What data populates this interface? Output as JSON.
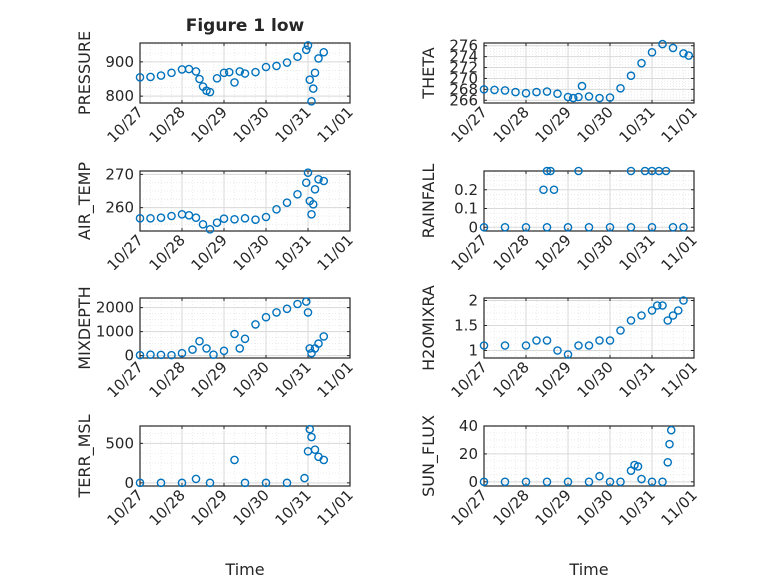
{
  "figure": {
    "title": "Figure 1 low",
    "xlabel": "Time",
    "date_ticks": [
      "10/27",
      "10/28",
      "10/29",
      "10/30",
      "10/31",
      "11/01"
    ]
  },
  "colors": {
    "marker": "#0072bd",
    "axis": "#262626",
    "grid": "#d9d9d9",
    "minor_grid": "#e6e6e6"
  },
  "chart_data": [
    {
      "type": "scatter",
      "title": "Figure 1 low",
      "ylabel": "PRESSURE",
      "xlim": [
        "2016-10-27",
        "2016-11-01"
      ],
      "ylim": [
        780,
        955
      ],
      "yticks": [
        800,
        900
      ],
      "x": [
        "2016-10-27T00:00",
        "2016-10-27T06:00",
        "2016-10-27T12:00",
        "2016-10-27T18:00",
        "2016-10-28T00:00",
        "2016-10-28T04:00",
        "2016-10-28T08:00",
        "2016-10-28T10:00",
        "2016-10-28T12:00",
        "2016-10-28T14:00",
        "2016-10-28T16:00",
        "2016-10-28T20:00",
        "2016-10-29T00:00",
        "2016-10-29T03:00",
        "2016-10-29T06:00",
        "2016-10-29T09:00",
        "2016-10-29T12:00",
        "2016-10-29T18:00",
        "2016-10-30T00:00",
        "2016-10-30T06:00",
        "2016-10-30T12:00",
        "2016-10-30T18:00",
        "2016-10-30T23:00",
        "2016-10-31T00:00",
        "2016-10-31T01:00",
        "2016-10-31T02:00",
        "2016-10-31T03:00",
        "2016-10-31T04:00",
        "2016-10-31T06:00",
        "2016-10-31T09:00"
      ],
      "y": [
        855,
        856,
        860,
        868,
        878,
        879,
        872,
        850,
        828,
        816,
        812,
        852,
        868,
        870,
        840,
        872,
        866,
        870,
        885,
        888,
        898,
        915,
        935,
        948,
        848,
        785,
        822,
        868,
        910,
        928
      ]
    },
    {
      "type": "scatter",
      "ylabel": "THETA",
      "xlim": [
        "2016-10-27",
        "2016-11-01"
      ],
      "ylim": [
        265.5,
        276.5
      ],
      "yticks": [
        266,
        268,
        270,
        272,
        274,
        276
      ],
      "x": [
        "2016-10-27T00:00",
        "2016-10-27T06:00",
        "2016-10-27T12:00",
        "2016-10-27T18:00",
        "2016-10-28T00:00",
        "2016-10-28T06:00",
        "2016-10-28T12:00",
        "2016-10-28T18:00",
        "2016-10-29T00:00",
        "2016-10-29T03:00",
        "2016-10-29T06:00",
        "2016-10-29T08:00",
        "2016-10-29T12:00",
        "2016-10-29T18:00",
        "2016-10-30T00:00",
        "2016-10-30T06:00",
        "2016-10-30T12:00",
        "2016-10-30T18:00",
        "2016-10-31T00:00",
        "2016-10-31T06:00",
        "2016-10-31T12:00",
        "2016-10-31T18:00",
        "2016-10-31T21:00"
      ],
      "y": [
        268.0,
        267.9,
        267.8,
        267.5,
        267.3,
        267.5,
        267.6,
        267.2,
        266.6,
        266.4,
        266.6,
        268.6,
        266.7,
        266.4,
        266.5,
        268.2,
        270.5,
        272.8,
        274.8,
        276.3,
        275.6,
        274.6,
        274.2
      ]
    },
    {
      "type": "scatter",
      "ylabel": "AIR_TEMP",
      "xlim": [
        "2016-10-27",
        "2016-11-01"
      ],
      "ylim": [
        253,
        271
      ],
      "yticks": [
        260,
        270
      ],
      "x": [
        "2016-10-27T00:00",
        "2016-10-27T06:00",
        "2016-10-27T12:00",
        "2016-10-27T18:00",
        "2016-10-28T00:00",
        "2016-10-28T04:00",
        "2016-10-28T08:00",
        "2016-10-28T12:00",
        "2016-10-28T16:00",
        "2016-10-28T20:00",
        "2016-10-29T00:00",
        "2016-10-29T06:00",
        "2016-10-29T12:00",
        "2016-10-29T18:00",
        "2016-10-30T00:00",
        "2016-10-30T06:00",
        "2016-10-30T12:00",
        "2016-10-30T18:00",
        "2016-10-30T23:00",
        "2016-10-31T00:00",
        "2016-10-31T01:00",
        "2016-10-31T02:00",
        "2016-10-31T03:00",
        "2016-10-31T04:00",
        "2016-10-31T06:00",
        "2016-10-31T09:00"
      ],
      "y": [
        256.8,
        256.8,
        257.0,
        257.5,
        258.0,
        257.7,
        257.0,
        255.0,
        253.5,
        255.5,
        256.7,
        256.5,
        256.8,
        256.4,
        257.2,
        259.5,
        261.5,
        264.0,
        267.5,
        270.5,
        262.0,
        258.0,
        261.0,
        265.5,
        268.5,
        268.0
      ]
    },
    {
      "type": "scatter",
      "ylabel": "RAINFALL",
      "xlim": [
        "2016-10-27",
        "2016-11-01"
      ],
      "ylim": [
        -0.02,
        0.3
      ],
      "yticks": [
        0,
        0.1,
        0.2
      ],
      "x": [
        "2016-10-27T00:00",
        "2016-10-27T12:00",
        "2016-10-28T00:00",
        "2016-10-28T12:00",
        "2016-10-29T00:00",
        "2016-10-29T12:00",
        "2016-10-30T00:00",
        "2016-10-30T12:00",
        "2016-10-31T00:00",
        "2016-10-31T12:00",
        "2016-10-31T18:00",
        "2016-10-28T10:00",
        "2016-10-28T12:00",
        "2016-10-28T14:00",
        "2016-10-28T16:00",
        "2016-10-29T06:00",
        "2016-10-30T12:00",
        "2016-10-30T20:00",
        "2016-10-31T00:00",
        "2016-10-31T04:00",
        "2016-10-31T08:00"
      ],
      "y": [
        0,
        0,
        0,
        0,
        0,
        0,
        0,
        0,
        0,
        0,
        0,
        0.2,
        0.3,
        0.3,
        0.2,
        0.3,
        0.3,
        0.3,
        0.3,
        0.3,
        0.3
      ]
    },
    {
      "type": "scatter",
      "ylabel": "MIXDEPTH",
      "xlim": [
        "2016-10-27",
        "2016-11-01"
      ],
      "ylim": [
        -100,
        2400
      ],
      "yticks": [
        0,
        1000,
        2000
      ],
      "x": [
        "2016-10-27T00:00",
        "2016-10-27T06:00",
        "2016-10-27T12:00",
        "2016-10-27T18:00",
        "2016-10-28T00:00",
        "2016-10-28T06:00",
        "2016-10-28T10:00",
        "2016-10-28T14:00",
        "2016-10-28T18:00",
        "2016-10-29T00:00",
        "2016-10-29T06:00",
        "2016-10-29T09:00",
        "2016-10-29T12:00",
        "2016-10-29T18:00",
        "2016-10-30T00:00",
        "2016-10-30T06:00",
        "2016-10-30T12:00",
        "2016-10-30T18:00",
        "2016-10-30T23:00",
        "2016-10-31T00:00",
        "2016-10-31T01:00",
        "2016-10-31T02:00",
        "2016-10-31T04:00",
        "2016-10-31T06:00",
        "2016-10-31T09:00"
      ],
      "y": [
        20,
        40,
        30,
        20,
        100,
        250,
        600,
        300,
        40,
        200,
        900,
        300,
        700,
        1300,
        1600,
        1800,
        1950,
        2150,
        2250,
        1800,
        300,
        100,
        300,
        500,
        800
      ]
    },
    {
      "type": "scatter",
      "ylabel": "H2OMIXRA",
      "xlim": [
        "2016-10-27",
        "2016-11-01"
      ],
      "ylim": [
        0.85,
        2.05
      ],
      "yticks": [
        1,
        1.5,
        2
      ],
      "x": [
        "2016-10-27T00:00",
        "2016-10-27T12:00",
        "2016-10-28T00:00",
        "2016-10-28T06:00",
        "2016-10-28T12:00",
        "2016-10-28T18:00",
        "2016-10-29T00:00",
        "2016-10-29T06:00",
        "2016-10-29T12:00",
        "2016-10-29T18:00",
        "2016-10-30T00:00",
        "2016-10-30T06:00",
        "2016-10-30T12:00",
        "2016-10-30T18:00",
        "2016-10-31T00:00",
        "2016-10-31T03:00",
        "2016-10-31T06:00",
        "2016-10-31T09:00",
        "2016-10-31T12:00",
        "2016-10-31T15:00",
        "2016-10-31T18:00"
      ],
      "y": [
        1.1,
        1.1,
        1.1,
        1.2,
        1.2,
        1.0,
        0.92,
        1.1,
        1.1,
        1.2,
        1.2,
        1.4,
        1.6,
        1.7,
        1.8,
        1.9,
        1.9,
        1.6,
        1.7,
        1.8,
        2.0
      ]
    },
    {
      "type": "scatter",
      "ylabel": "TERR_MSL",
      "xlim": [
        "2016-10-27",
        "2016-11-01"
      ],
      "ylim": [
        -40,
        720
      ],
      "yticks": [
        0,
        500
      ],
      "x": [
        "2016-10-27T00:00",
        "2016-10-27T12:00",
        "2016-10-28T00:00",
        "2016-10-28T08:00",
        "2016-10-28T16:00",
        "2016-10-29T06:00",
        "2016-10-29T12:00",
        "2016-10-30T00:00",
        "2016-10-30T12:00",
        "2016-10-30T22:00",
        "2016-10-31T00:00",
        "2016-10-31T01:00",
        "2016-10-31T02:00",
        "2016-10-31T04:00",
        "2016-10-31T06:00",
        "2016-10-31T09:00"
      ],
      "y": [
        0,
        0,
        0,
        50,
        0,
        290,
        0,
        0,
        0,
        60,
        400,
        680,
        580,
        420,
        330,
        290
      ]
    },
    {
      "type": "scatter",
      "ylabel": "SUN_FLUX",
      "xlim": [
        "2016-10-27",
        "2016-11-01"
      ],
      "ylim": [
        -3,
        40
      ],
      "yticks": [
        0,
        20,
        40
      ],
      "x": [
        "2016-10-27T00:00",
        "2016-10-27T12:00",
        "2016-10-28T00:00",
        "2016-10-28T12:00",
        "2016-10-29T00:00",
        "2016-10-29T12:00",
        "2016-10-29T18:00",
        "2016-10-30T00:00",
        "2016-10-30T06:00",
        "2016-10-30T12:00",
        "2016-10-30T14:00",
        "2016-10-30T16:00",
        "2016-10-30T18:00",
        "2016-10-31T00:00",
        "2016-10-31T06:00",
        "2016-10-31T09:00",
        "2016-10-31T10:00",
        "2016-10-31T11:00"
      ],
      "y": [
        0,
        0,
        0,
        0,
        0,
        0,
        4,
        0,
        0,
        8,
        12,
        11,
        2,
        0,
        0,
        14,
        27,
        37
      ]
    }
  ]
}
